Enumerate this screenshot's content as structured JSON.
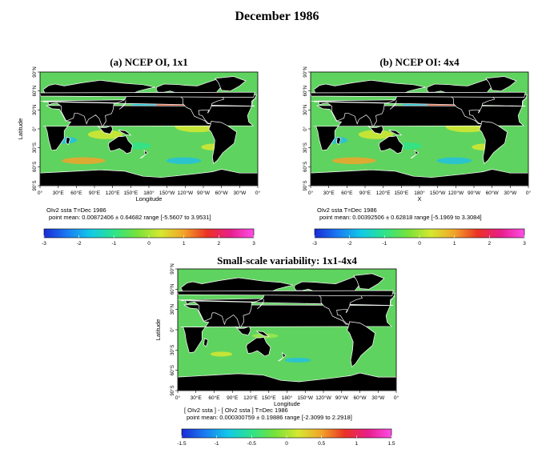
{
  "figure_title": "December 1986",
  "chart_data": [
    {
      "type": "heatmap",
      "title": "(a) NCEP OI, 1x1",
      "xlabel": "Longitude",
      "ylabel": "Latitude",
      "x_ticks": [
        "0°",
        "30°E",
        "60°E",
        "90°E",
        "120°E",
        "150°E",
        "180°",
        "150°W",
        "120°W",
        "90°W",
        "60°W",
        "30°W",
        "0°"
      ],
      "y_ticks": [
        "90°N",
        "60°N",
        "30°N",
        "0°",
        "30°S",
        "60°S",
        "90°S"
      ],
      "info_line1": "OIv2 ssta T=Dec 1986",
      "info_line2": "point mean: 0.00872406 ± 0.64682 range [-5.5607 to 3.9531]",
      "colorbar": {
        "min": -3,
        "max": 3,
        "ticks": [
          "-3",
          "-2",
          "-1",
          "0",
          "1",
          "2",
          "3"
        ]
      }
    },
    {
      "type": "heatmap",
      "title": "(b) NCEP OI: 4x4",
      "xlabel": "X",
      "ylabel": "",
      "x_ticks": [
        "0°",
        "30°E",
        "60°E",
        "90°E",
        "120°E",
        "150°E",
        "180°",
        "150°W",
        "120°W",
        "90°W",
        "60°W",
        "30°W",
        "0°"
      ],
      "y_ticks": [
        "90°N",
        "60°N",
        "30°N",
        "0°",
        "30°S",
        "60°S",
        "90°S"
      ],
      "info_line1": "OIv2 ssta T=Dec 1986",
      "info_line2": "point mean: 0.00392506 ± 0.62818 range [-5.1969 to 3.3084]",
      "colorbar": {
        "min": -3,
        "max": 3,
        "ticks": [
          "-3",
          "-2",
          "-1",
          "0",
          "1",
          "2",
          "3"
        ]
      }
    },
    {
      "type": "heatmap",
      "title": "Small-scale variability: 1x1-4x4",
      "xlabel": "Longitude",
      "ylabel": "Latitude",
      "x_ticks": [
        "0°",
        "30°E",
        "60°E",
        "90°E",
        "120°E",
        "150°E",
        "180°",
        "150°W",
        "120°W",
        "90°W",
        "60°W",
        "30°W",
        "0°"
      ],
      "y_ticks": [
        "90°N",
        "60°N",
        "30°N",
        "0°",
        "30°S",
        "60°S",
        "90°S"
      ],
      "info_line1": "[ OIv2 ssta ] - [ OIv2 ssta ] T=Dec 1986",
      "info_line2": "point mean: 0.000300759 ± 0.19886 range [-2.3099 to 2.2918]",
      "colorbar": {
        "min": -1.5,
        "max": 1.5,
        "ticks": [
          "-1.5",
          "-1",
          "-0.5",
          "0",
          "0.5",
          "1",
          "1.5"
        ]
      }
    }
  ],
  "colors": {
    "land": "#000000",
    "ocean_base": "#5fd35f",
    "warm_anomaly": "#e8412c",
    "cool_anomaly": "#22c1e0"
  }
}
